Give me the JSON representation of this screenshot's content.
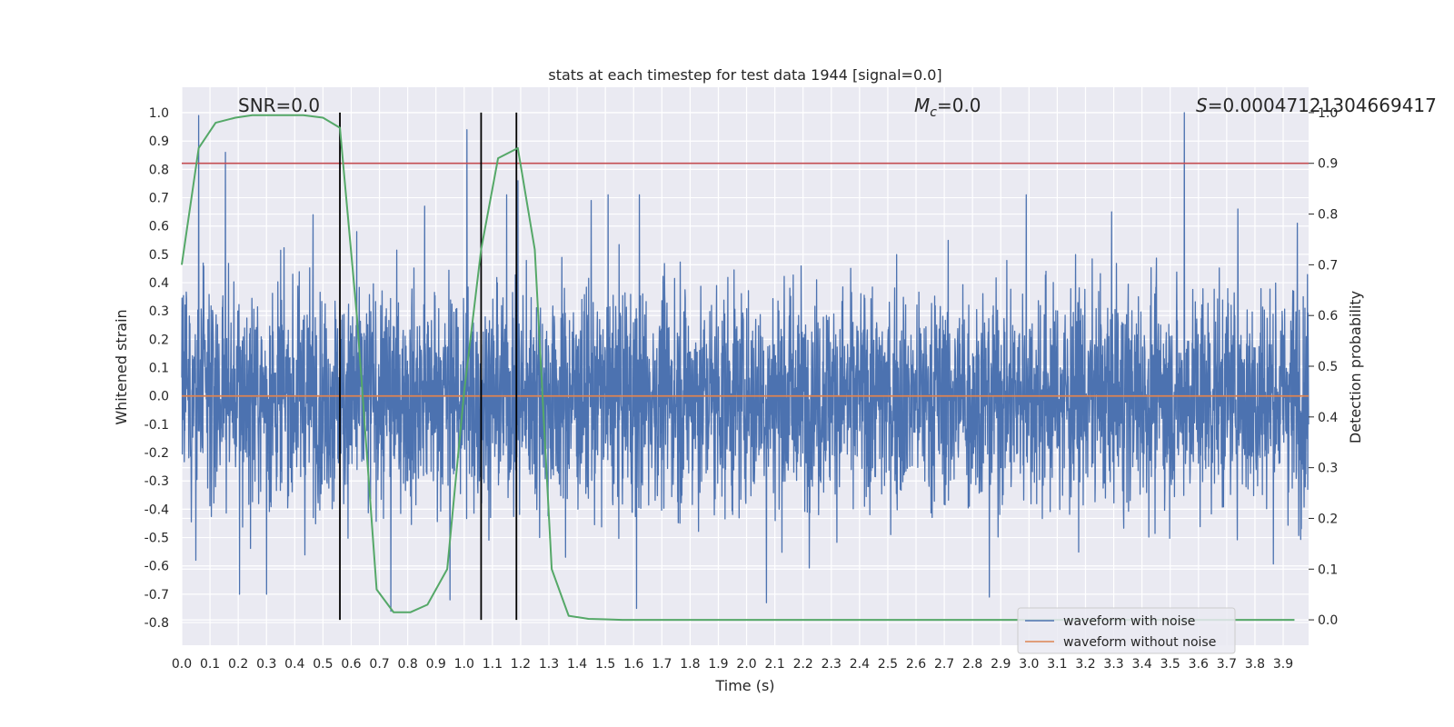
{
  "chart_data": {
    "type": "line",
    "title": "stats at each timestep for test data 1944 [signal=0.0]",
    "xlabel": "Time (s)",
    "ylabel": "Whitened strain",
    "y2label": "Detection probability",
    "xlim": [
      0.0,
      3.99
    ],
    "ylim": [
      -0.88,
      1.09
    ],
    "y2lim": [
      -0.05,
      1.05
    ],
    "x_ticks": [
      "0.0",
      "0.1",
      "0.2",
      "0.3",
      "0.4",
      "0.5",
      "0.6",
      "0.7",
      "0.8",
      "0.9",
      "1.0",
      "1.1",
      "1.2",
      "1.3",
      "1.4",
      "1.5",
      "1.6",
      "1.7",
      "1.8",
      "1.9",
      "2.0",
      "2.1",
      "2.2",
      "2.3",
      "2.4",
      "2.5",
      "2.6",
      "2.7",
      "2.8",
      "2.9",
      "3.0",
      "3.1",
      "3.2",
      "3.3",
      "3.4",
      "3.5",
      "3.6",
      "3.7",
      "3.8",
      "3.9"
    ],
    "y_ticks": [
      "-0.8",
      "-0.7",
      "-0.6",
      "-0.5",
      "-0.4",
      "-0.3",
      "-0.2",
      "-0.1",
      "0.0",
      "0.1",
      "0.2",
      "0.3",
      "0.4",
      "0.5",
      "0.6",
      "0.7",
      "0.8",
      "0.9",
      "1.0"
    ],
    "y2_ticks": [
      "0.0",
      "0.1",
      "0.2",
      "0.3",
      "0.4",
      "0.5",
      "0.6",
      "0.7",
      "0.8",
      "0.9",
      "1.0"
    ],
    "grid": true,
    "legend_placement": "lower-right",
    "annotations": {
      "snr": "SNR=0.0",
      "mc_symbol": "M",
      "mc_sub": "c",
      "mc_value": "=0.0",
      "s_symbol": "S",
      "s_value": "=0.00047121304669417"
    },
    "threshold": {
      "value": 0.9,
      "axis": "right",
      "color": "#c44e52"
    },
    "vertical_lines": [
      0.56,
      1.06,
      1.185
    ],
    "series": [
      {
        "name": "waveform with noise",
        "axis": "left",
        "color": "#4c72b0",
        "kind": "noise",
        "mean": 0.0,
        "typical_envelope": [
          -0.45,
          0.45
        ],
        "spikes": [
          {
            "x": 0.06,
            "y": 0.99
          },
          {
            "x": 0.05,
            "y": -0.58
          },
          {
            "x": 0.155,
            "y": 0.86
          },
          {
            "x": 0.205,
            "y": -0.7
          },
          {
            "x": 0.3,
            "y": -0.7
          },
          {
            "x": 0.465,
            "y": 0.64
          },
          {
            "x": 0.62,
            "y": 0.58
          },
          {
            "x": 0.74,
            "y": -0.76
          },
          {
            "x": 0.86,
            "y": 0.67
          },
          {
            "x": 0.95,
            "y": -0.72
          },
          {
            "x": 1.01,
            "y": 0.94
          },
          {
            "x": 1.15,
            "y": 0.71
          },
          {
            "x": 1.19,
            "y": 0.76
          },
          {
            "x": 1.45,
            "y": 0.69
          },
          {
            "x": 1.51,
            "y": 0.71
          },
          {
            "x": 1.62,
            "y": 0.71
          },
          {
            "x": 1.61,
            "y": -0.75
          },
          {
            "x": 2.07,
            "y": -0.73
          },
          {
            "x": 2.86,
            "y": -0.71
          },
          {
            "x": 2.99,
            "y": 0.71
          },
          {
            "x": 3.55,
            "y": 1.0
          },
          {
            "x": 3.74,
            "y": 0.66
          },
          {
            "x": 3.95,
            "y": 0.61
          }
        ]
      },
      {
        "name": "waveform without noise",
        "axis": "left",
        "color": "#dd8452",
        "kind": "line",
        "x": [
          0.0,
          3.99
        ],
        "y": [
          0.0,
          0.0
        ]
      },
      {
        "name": "detection probability",
        "axis": "right",
        "color": "#55a868",
        "kind": "line",
        "x": [
          0.0,
          0.06,
          0.12,
          0.19,
          0.25,
          0.31,
          0.37,
          0.43,
          0.5,
          0.56,
          0.62,
          0.69,
          0.75,
          0.81,
          0.87,
          0.94,
          1.0,
          1.06,
          1.12,
          1.19,
          1.25,
          1.31,
          1.37,
          1.44,
          1.5,
          1.56,
          1.62,
          2.0,
          2.5,
          3.0,
          3.5,
          3.94
        ],
        "y": [
          0.7,
          0.93,
          0.98,
          0.99,
          0.995,
          0.995,
          0.995,
          0.995,
          0.99,
          0.97,
          0.6,
          0.06,
          0.015,
          0.015,
          0.03,
          0.1,
          0.45,
          0.73,
          0.91,
          0.93,
          0.73,
          0.1,
          0.008,
          0.002,
          0.001,
          0.0,
          0.0,
          0.0,
          0.0,
          0.0,
          0.0,
          0.0
        ]
      }
    ]
  }
}
